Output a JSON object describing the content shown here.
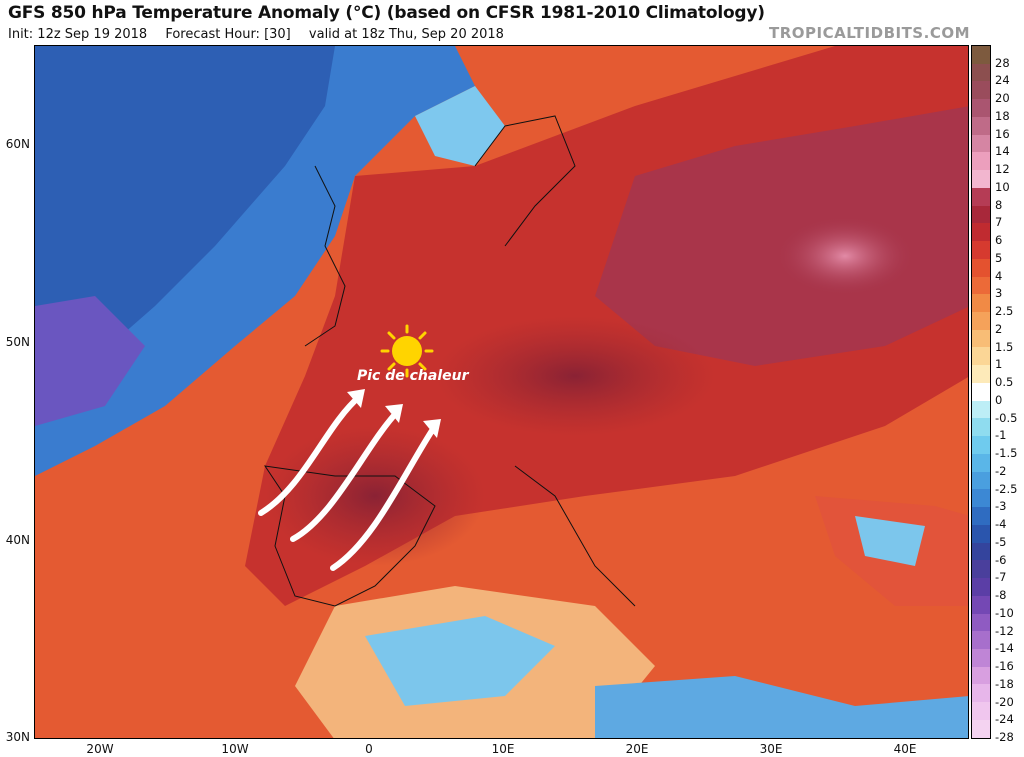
{
  "header": {
    "title": "GFS 850 hPa Temperature Anomaly (°C) (based on CFSR 1981-2010 Climatology)",
    "init": "Init: 12z Sep 19 2018",
    "forecast_hour": "Forecast Hour: [30]",
    "valid": "valid at 18z Thu, Sep 20 2018",
    "brand": "TROPICALTIDBITS.COM"
  },
  "map": {
    "lat_labels": [
      "60N",
      "50N",
      "40N",
      "30N"
    ],
    "lon_labels": [
      "20W",
      "10W",
      "0",
      "10E",
      "20E",
      "30E",
      "40E"
    ],
    "annotation": "Pic de chaleur",
    "annotation_icon": "sun-icon",
    "arrow_icon": "curved-arrow-icon",
    "colors": {
      "sun": "#ffd400",
      "arrows": "#ffffff",
      "ocean_cold": "#2f63b8",
      "warm": "#d8352a",
      "hot": "#8e2332"
    }
  },
  "colorbar": {
    "labels": [
      "28",
      "24",
      "20",
      "18",
      "16",
      "14",
      "12",
      "10",
      "8",
      "7",
      "6",
      "5",
      "4",
      "3",
      "2.5",
      "2",
      "1.5",
      "1",
      "0.5",
      "0",
      "-0.5",
      "-1",
      "-1.5",
      "-2",
      "-2.5",
      "-3",
      "-4",
      "-5",
      "-6",
      "-7",
      "-8",
      "-10",
      "-12",
      "-14",
      "-16",
      "-18",
      "-20",
      "-24",
      "-28"
    ],
    "colors": [
      "#7d5a3e",
      "#8c4f4f",
      "#9a4c5c",
      "#aa5570",
      "#bf6b88",
      "#d585a3",
      "#ec9fbd",
      "#f2b6cf",
      "#b53c55",
      "#a8283a",
      "#c02b30",
      "#d63a2f",
      "#e4522f",
      "#ec6a38",
      "#f18a45",
      "#f5a25a",
      "#f8bd76",
      "#fbd696",
      "#fdeab9",
      "#ffffff",
      "#bdeef6",
      "#8fdcef",
      "#6fcbee",
      "#5ab6e8",
      "#4a9fdf",
      "#3c88d4",
      "#2f6cc1",
      "#2a55ad",
      "#34449d",
      "#4a3f9c",
      "#5b3ea6",
      "#7448b4",
      "#8f5bc2",
      "#a76fcc",
      "#bf85d6",
      "#d89fe0",
      "#e7b6ea",
      "#f0c6ee",
      "#f4d3f1"
    ]
  }
}
